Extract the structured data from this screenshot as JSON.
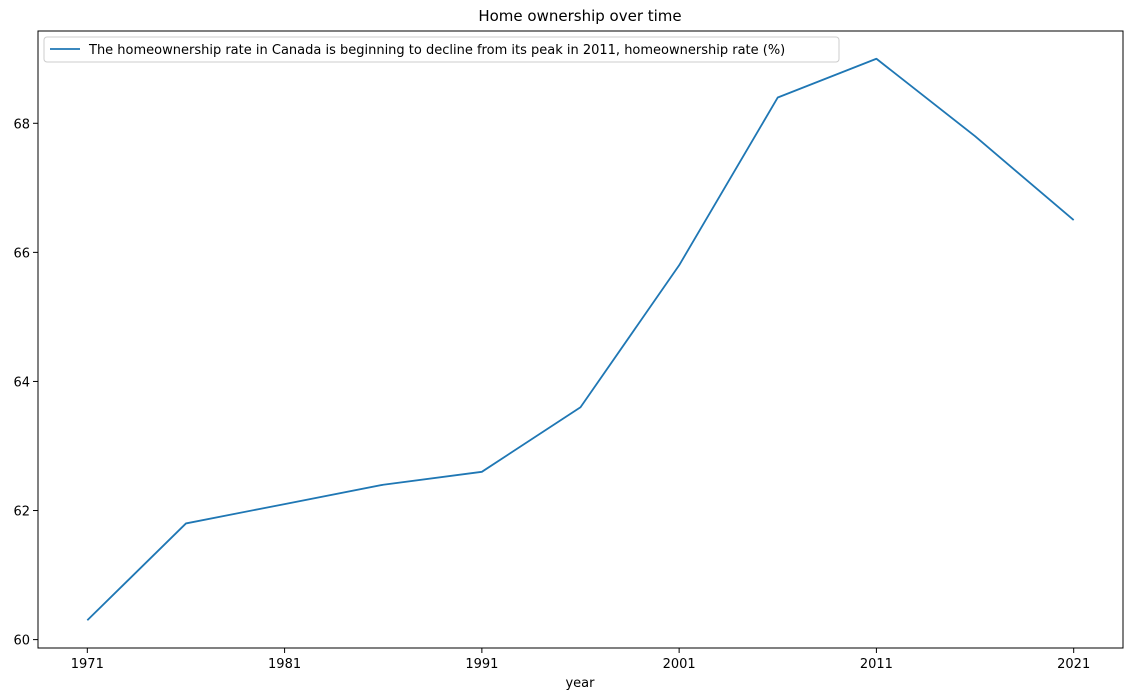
{
  "chart_data": {
    "type": "line",
    "title": "Home ownership over time",
    "xlabel": "year",
    "ylabel": "",
    "x": [
      1971,
      1976,
      1981,
      1986,
      1991,
      1996,
      2001,
      2006,
      2011,
      2016,
      2021
    ],
    "series": [
      {
        "name": "The homeownership rate in Canada is beginning to decline from its peak in 2011, homeownership rate (%)",
        "values": [
          60.3,
          61.8,
          62.1,
          62.4,
          62.6,
          63.6,
          65.8,
          68.4,
          69.0,
          67.8,
          66.5
        ],
        "color": "#1f77b4"
      }
    ],
    "xticks": [
      1971,
      1981,
      1991,
      2001,
      2011,
      2021
    ],
    "yticks": [
      60,
      62,
      64,
      66,
      68
    ],
    "xlim": [
      1968.5,
      2023.5
    ],
    "ylim": [
      59.87,
      69.43
    ],
    "grid": false,
    "legend_position": "top-left"
  }
}
